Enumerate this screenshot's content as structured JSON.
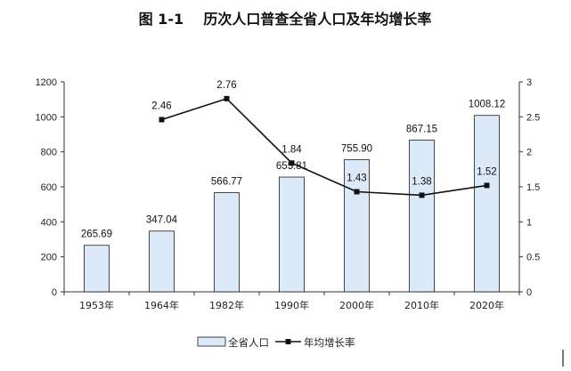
{
  "chart_data": {
    "type": "bar",
    "title": "图 1-1    历次人口普查全省人口及年均增长率",
    "categories": [
      "1953年",
      "1964年",
      "1982年",
      "1990年",
      "2000年",
      "2010年",
      "2020年"
    ],
    "series": [
      {
        "name": "全省人口",
        "type": "bar",
        "axis": "left",
        "values": [
          265.69,
          347.04,
          566.77,
          655.81,
          755.9,
          867.15,
          1008.12
        ],
        "labels": [
          "265.69",
          "347.04",
          "566.77",
          "655.81",
          "755.90",
          "867.15",
          "1008.12"
        ],
        "color": "#dce9f8",
        "edge_color": "#1a1a1a"
      },
      {
        "name": "年均增长率",
        "type": "line",
        "axis": "right",
        "values": [
          null,
          2.46,
          2.76,
          1.84,
          1.43,
          1.38,
          1.52
        ],
        "labels": [
          "",
          "2.46",
          "2.76",
          "1.84",
          "1.43",
          "1.38",
          "1.52"
        ],
        "color": "#111111",
        "marker": "square"
      }
    ],
    "y_left": {
      "ylim": [
        0,
        1200
      ],
      "ticks": [
        "0",
        "200",
        "400",
        "600",
        "800",
        "1000",
        "1200"
      ]
    },
    "y_right": {
      "ylim": [
        0,
        3
      ],
      "ticks": [
        "0",
        "0.5",
        "1",
        "1.5",
        "2",
        "2.5",
        "3"
      ]
    },
    "grid": false,
    "legend": "bottom-center"
  }
}
